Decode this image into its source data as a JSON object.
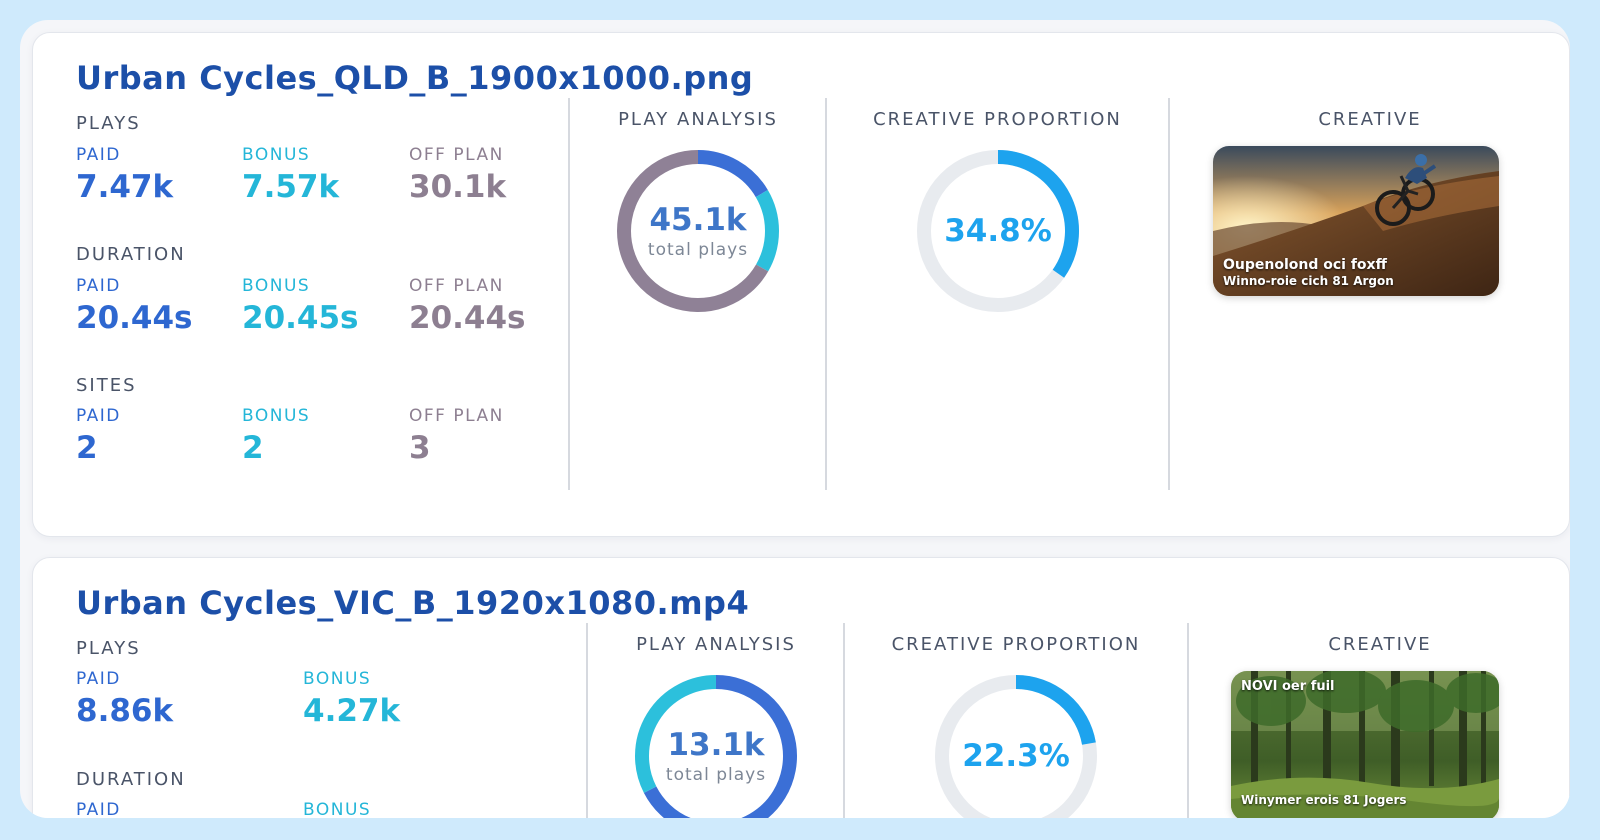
{
  "cards": [
    {
      "title": "Urban Cycles_QLD_B_1900x1000.png",
      "plays": {
        "label": "PLAYS",
        "paid_label": "PAID",
        "paid": "7.47k",
        "bonus_label": "BONUS",
        "bonus": "7.57k",
        "off_label": "OFF PLAN",
        "off": "30.1k"
      },
      "duration": {
        "label": "DURATION",
        "paid_label": "PAID",
        "paid": "20.44s",
        "bonus_label": "BONUS",
        "bonus": "20.45s",
        "off_label": "OFF PLAN",
        "off": "20.44s"
      },
      "sites": {
        "label": "SITES",
        "paid_label": "PAID",
        "paid": "2",
        "bonus_label": "BONUS",
        "bonus": "2",
        "off_label": "OFF PLAN",
        "off": "3"
      },
      "play_analysis": {
        "label": "PLAY ANALYSIS",
        "total": "45.1k",
        "total_label": "total plays",
        "segments": [
          {
            "name": "paid",
            "value": 7.47,
            "color": "#3b6fd6"
          },
          {
            "name": "bonus",
            "value": 7.57,
            "color": "#2cc0dc"
          },
          {
            "name": "off plan",
            "value": 30.1,
            "color": "#8f8196"
          }
        ]
      },
      "creative_proportion": {
        "label": "CREATIVE PROPORTION",
        "value": "34.8%",
        "fraction": 0.348,
        "color": "#1da3ee"
      },
      "creative": {
        "label": "CREATIVE",
        "caption_line1": "Oupenolond oci foxff",
        "caption_line2": "Winno-roie cich 81 Argon",
        "scene": "mountain-bike-sunset"
      }
    },
    {
      "title": "Urban Cycles_VIC_B_1920x1080.mp4",
      "plays": {
        "label": "PLAYS",
        "paid_label": "PAID",
        "paid": "8.86k",
        "bonus_label": "BONUS",
        "bonus": "4.27k"
      },
      "duration": {
        "label": "DURATION",
        "paid_label": "PAID",
        "bonus_label": "BONUS"
      },
      "play_analysis": {
        "label": "PLAY ANALYSIS",
        "total": "13.1k",
        "total_label": "total plays",
        "segments": [
          {
            "name": "paid",
            "value": 8.86,
            "color": "#3b6fd6"
          },
          {
            "name": "bonus",
            "value": 4.27,
            "color": "#2cc0dc"
          }
        ]
      },
      "creative_proportion": {
        "label": "CREATIVE PROPORTION",
        "value": "22.3%",
        "fraction": 0.223,
        "color": "#1da3ee"
      },
      "creative": {
        "label": "CREATIVE",
        "caption_top": "NOVI oer fuil",
        "caption_bottom": "Winymer erois 81 Jogers",
        "scene": "forest"
      }
    }
  ]
}
